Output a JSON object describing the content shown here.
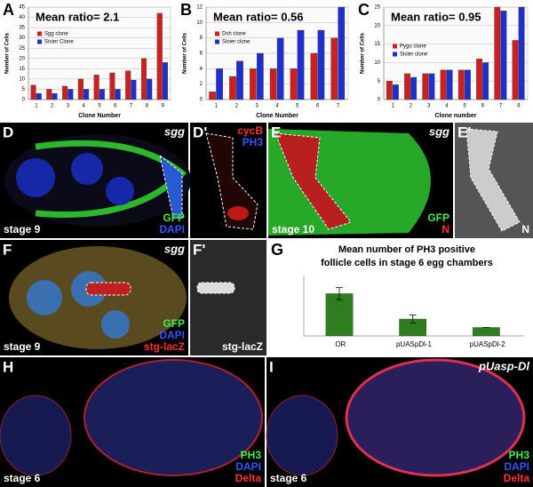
{
  "chart_data": [
    {
      "type": "bar",
      "panel": "A",
      "title": "Mean ratio= 2.1",
      "ylabel": "Number of Cells",
      "xlabel": "Clone Number",
      "categories": [
        "1",
        "2",
        "3",
        "4",
        "5",
        "6",
        "7",
        "8",
        "9"
      ],
      "series": [
        {
          "name": "Sgg clone",
          "color": "#cc1f1f",
          "values": [
            7,
            5,
            6.5,
            10,
            12,
            13,
            14,
            20,
            42
          ]
        },
        {
          "name": "Sister Clone",
          "color": "#1f2fcc",
          "values": [
            3,
            3,
            5,
            5,
            5,
            5,
            9.5,
            10,
            18
          ]
        }
      ],
      "ylim": [
        0,
        45
      ],
      "yticks": [
        0,
        5,
        10,
        15,
        20,
        25,
        30,
        35,
        40,
        45
      ],
      "grid": true,
      "legend": "upper left"
    },
    {
      "type": "bar",
      "panel": "B",
      "title": "Mean ratio= 0.56",
      "ylabel": "Number of Cells",
      "xlabel": "Clone Number",
      "categories": [
        "1",
        "2",
        "3",
        "4",
        "5",
        "6",
        "7"
      ],
      "series": [
        {
          "name": "Dsh clone",
          "color": "#cc1f1f",
          "values": [
            1,
            3,
            4,
            4,
            4,
            6,
            8
          ]
        },
        {
          "name": "Sister clone",
          "color": "#1f2fcc",
          "values": [
            4,
            5,
            6,
            8,
            9,
            9,
            12
          ]
        }
      ],
      "ylim": [
        0,
        12
      ],
      "yticks": [
        0,
        2,
        4,
        6,
        8,
        10,
        12
      ],
      "grid": true,
      "legend": "upper left"
    },
    {
      "type": "bar",
      "panel": "C",
      "title": "Mean ratio= 0.95",
      "ylabel": "Number of Cells",
      "xlabel": "Clone number",
      "categories": [
        "1",
        "2",
        "3",
        "4",
        "5",
        "6",
        "7",
        "8"
      ],
      "series": [
        {
          "name": "Pygo clone",
          "color": "#cc1f1f",
          "values": [
            5,
            7,
            7,
            8,
            8,
            11,
            25,
            16
          ]
        },
        {
          "name": "Sister clone",
          "color": "#1f2fcc",
          "values": [
            4,
            6,
            7,
            8,
            8,
            10,
            24,
            25
          ]
        }
      ],
      "ylim": [
        0,
        25
      ],
      "yticks": [
        0,
        5,
        10,
        15,
        20,
        25
      ],
      "grid": true,
      "legend": "center left"
    },
    {
      "type": "bar",
      "panel": "G",
      "title": [
        "Mean number of PH3 positive",
        "follicle cells in stage 6 egg chambers"
      ],
      "categories": [
        "OR",
        "pUASpDl-1",
        "pUASpDl-2"
      ],
      "values": [
        17.5,
        7,
        3.5
      ],
      "errors": [
        2.5,
        1.7,
        0
      ],
      "color": "#2e7d1e",
      "ylim": [
        0,
        25
      ],
      "grid": false
    }
  ],
  "images": [
    {
      "letter": "D",
      "tag": "sgg",
      "stage": "stage 9",
      "channels": [
        {
          "name": "GFP",
          "color": "#44ee44"
        },
        {
          "name": "DAPI",
          "color": "#3355ff"
        }
      ]
    },
    {
      "letter": "D'",
      "channels": [
        {
          "name": "cycB",
          "color": "#ff3333"
        },
        {
          "name": "PH3",
          "color": "#3355ff"
        }
      ],
      "channels_top": true
    },
    {
      "letter": "E",
      "tag": "sgg",
      "stage": "stage 10",
      "channels": [
        {
          "name": "GFP",
          "color": "#44ee44"
        },
        {
          "name": "N",
          "color": "#ff3333"
        }
      ]
    },
    {
      "letter": "E'",
      "channels": [
        {
          "name": "N",
          "color": "#ffffff"
        }
      ]
    },
    {
      "letter": "F",
      "tag": "sgg",
      "stage": "stage 9",
      "channels": [
        {
          "name": "GFP",
          "color": "#44ee44"
        },
        {
          "name": "DAPI",
          "color": "#3355ff"
        },
        {
          "name": "stg-lacZ",
          "color": "#ff3333"
        }
      ]
    },
    {
      "letter": "F'",
      "stage": "stg-lacZ"
    },
    {
      "letter": "H",
      "stage": "stage 6",
      "channels": [
        {
          "name": "PH3",
          "color": "#44ee44"
        },
        {
          "name": "DAPI",
          "color": "#3355ff"
        },
        {
          "name": "Delta",
          "color": "#ff3333"
        }
      ]
    },
    {
      "letter": "I",
      "tag": "pUasp-Dl",
      "stage": "stage 6",
      "channels": [
        {
          "name": "PH3",
          "color": "#44ee44"
        },
        {
          "name": "DAPI",
          "color": "#3355ff"
        },
        {
          "name": "Delta",
          "color": "#ff3333"
        }
      ]
    }
  ]
}
